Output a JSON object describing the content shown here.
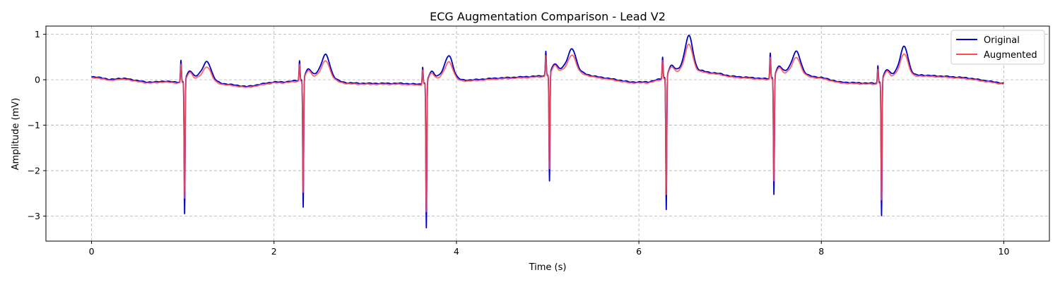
{
  "chart_data": {
    "type": "line",
    "title": "ECG Augmentation Comparison - Lead V2",
    "xlabel": "Time (s)",
    "ylabel": "Amplitude (mV)",
    "xlim": [
      -0.5,
      10.5
    ],
    "ylim": [
      -3.55,
      1.18
    ],
    "xticks": [
      0,
      2,
      4,
      6,
      8,
      10
    ],
    "xtick_labels": [
      "0",
      "2",
      "4",
      "6",
      "8",
      "10"
    ],
    "yticks": [
      -3,
      -2,
      -1,
      0,
      1
    ],
    "ytick_labels": [
      "−3",
      "−2",
      "−1",
      "0",
      "1"
    ],
    "grid": true,
    "legend_position": "top-right",
    "baseline": [
      [
        0,
        0.06
      ],
      [
        0.1,
        0.05
      ],
      [
        0.2,
        0.0
      ],
      [
        0.3,
        0.03
      ],
      [
        0.4,
        0.02
      ],
      [
        0.5,
        -0.02
      ],
      [
        0.6,
        -0.05
      ],
      [
        0.7,
        -0.05
      ],
      [
        0.8,
        -0.03
      ],
      [
        0.9,
        -0.05
      ],
      [
        1.35,
        -0.08
      ],
      [
        1.5,
        -0.1
      ],
      [
        1.7,
        -0.15
      ],
      [
        1.8,
        -0.12
      ],
      [
        1.9,
        -0.08
      ],
      [
        2.0,
        -0.05
      ],
      [
        2.1,
        -0.05
      ],
      [
        2.25,
        -0.02
      ],
      [
        2.65,
        -0.02
      ],
      [
        2.8,
        -0.07
      ],
      [
        3.0,
        -0.08
      ],
      [
        3.2,
        -0.08
      ],
      [
        3.4,
        -0.08
      ],
      [
        3.6,
        -0.1
      ],
      [
        4.0,
        -0.03
      ],
      [
        4.2,
        0.0
      ],
      [
        4.4,
        0.03
      ],
      [
        4.6,
        0.05
      ],
      [
        4.9,
        0.08
      ],
      [
        5.4,
        0.12
      ],
      [
        5.5,
        0.08
      ],
      [
        5.7,
        0.02
      ],
      [
        5.9,
        -0.05
      ],
      [
        6.1,
        -0.05
      ],
      [
        6.2,
        0.0
      ],
      [
        6.7,
        0.18
      ],
      [
        6.9,
        0.13
      ],
      [
        7.0,
        0.08
      ],
      [
        7.2,
        0.05
      ],
      [
        7.4,
        0.02
      ],
      [
        7.8,
        0.08
      ],
      [
        8.0,
        0.05
      ],
      [
        8.2,
        -0.05
      ],
      [
        8.4,
        -0.07
      ],
      [
        8.6,
        -0.08
      ],
      [
        9.1,
        0.1
      ],
      [
        9.4,
        0.07
      ],
      [
        9.6,
        0.04
      ],
      [
        9.8,
        -0.02
      ],
      [
        10.0,
        -0.08
      ]
    ],
    "beats": [
      {
        "t": 1.0,
        "r": 0.52,
        "s": -3.04,
        "t_peak": 0.6
      },
      {
        "t": 2.3,
        "r": 0.48,
        "s": -2.93,
        "t_peak": 0.7
      },
      {
        "t": 3.65,
        "r": 0.42,
        "s": -3.33,
        "t_peak": 0.7
      },
      {
        "t": 5.0,
        "r": 0.58,
        "s": -2.47,
        "t_peak": 0.7
      },
      {
        "t": 6.28,
        "r": 0.52,
        "s": -3.04,
        "t_peak": 0.97
      },
      {
        "t": 7.46,
        "r": 0.6,
        "s": -2.7,
        "t_peak": 0.68
      },
      {
        "t": 8.64,
        "r": 0.42,
        "s": -3.08,
        "t_peak": 0.83
      }
    ],
    "series": [
      {
        "name": "Original",
        "color": "#0000cc",
        "amplitude_scale": 1.0,
        "t_wave_scale": 1.0
      },
      {
        "name": "Augmented",
        "color": "#ff4c4c",
        "amplitude_scale": 0.88,
        "t_wave_scale": 0.8
      }
    ]
  }
}
